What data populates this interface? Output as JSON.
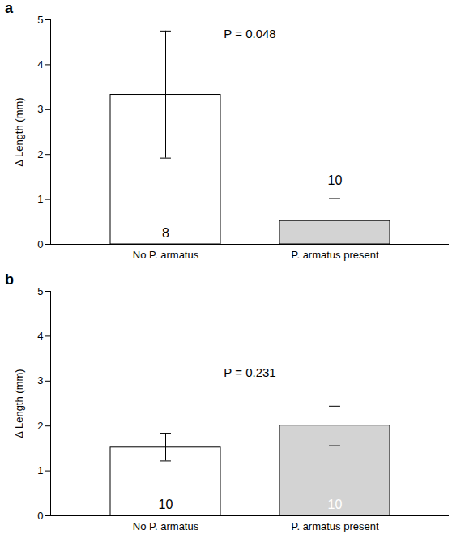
{
  "chart_data": [
    {
      "type": "bar",
      "title": "a",
      "categories": [
        "No P. armatus",
        "P. armatus present"
      ],
      "values": [
        3.33,
        0.52
      ],
      "error_range": [
        [
          1.92,
          4.75
        ],
        [
          0,
          1.02
        ]
      ],
      "n_labels": [
        8,
        10
      ],
      "colors": [
        "#ffffff",
        "#d3d3d3"
      ],
      "y_label": "Δ Length (mm)",
      "annotation": "P = 0.048",
      "ylim": [
        0,
        5
      ],
      "yticks": [
        0,
        1,
        2,
        3,
        4,
        5
      ]
    },
    {
      "type": "bar",
      "title": "b",
      "categories": [
        "No P. armatus",
        "P. armatus present"
      ],
      "values": [
        1.52,
        2.01
      ],
      "error_range": [
        [
          1.22,
          1.84
        ],
        [
          1.56,
          2.44
        ]
      ],
      "n_labels": [
        10,
        10
      ],
      "colors": [
        "#ffffff",
        "#d3d3d3"
      ],
      "y_label": "Δ Length (mm)",
      "annotation": "P = 0.231",
      "ylim": [
        0,
        5
      ],
      "yticks": [
        0,
        1,
        2,
        3,
        4,
        5
      ]
    }
  ]
}
